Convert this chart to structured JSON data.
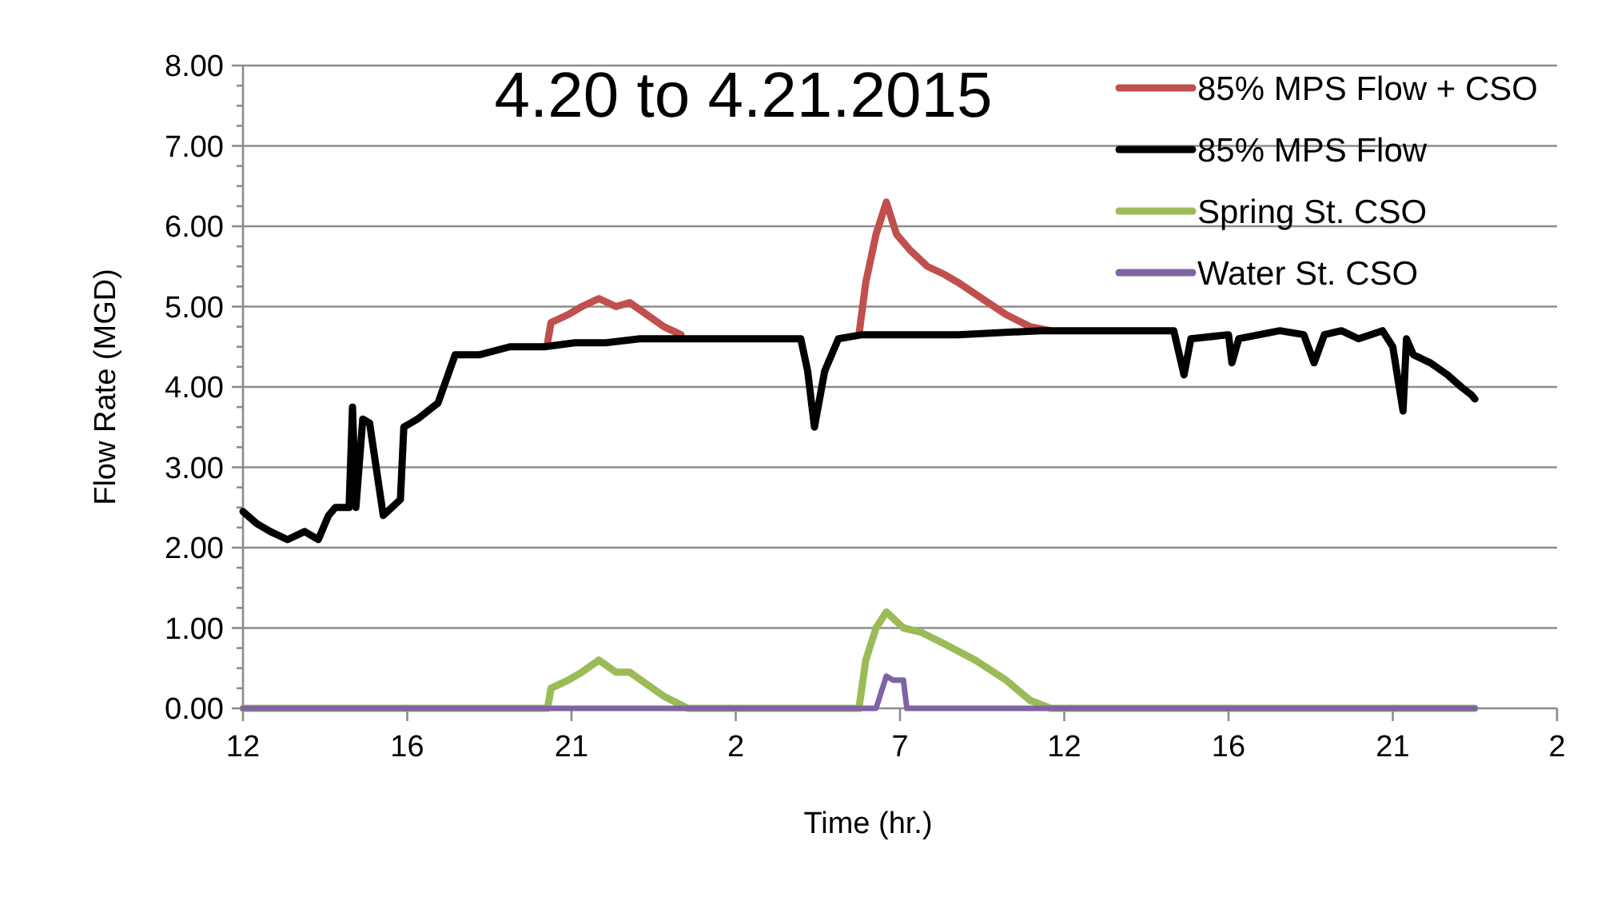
{
  "chart_data": {
    "type": "line",
    "title": "4.20 to 4.21.2015",
    "xlabel": "Time (hr.)",
    "ylabel": "Flow Rate (MGD)",
    "xlim": [
      "2015-04-20T12:00",
      "2015-04-22T02:24"
    ],
    "xticks": [
      {
        "value": "2015-04-20T12:00",
        "label": "12"
      },
      {
        "value": "2015-04-20T16:48",
        "label": "16"
      },
      {
        "value": "2015-04-20T21:36",
        "label": "21"
      },
      {
        "value": "2015-04-21T02:24",
        "label": "2"
      },
      {
        "value": "2015-04-21T07:12",
        "label": "7"
      },
      {
        "value": "2015-04-21T12:00",
        "label": "12"
      },
      {
        "value": "2015-04-21T16:48",
        "label": "16"
      },
      {
        "value": "2015-04-21T21:36",
        "label": "21"
      },
      {
        "value": "2015-04-22T02:24",
        "label": "2"
      }
    ],
    "ylim": [
      0,
      8
    ],
    "yticks": [
      {
        "value": 0,
        "label": "0.00"
      },
      {
        "value": 0.25,
        "label": null
      },
      {
        "value": 0.5,
        "label": null
      },
      {
        "value": 0.75,
        "label": null
      },
      {
        "value": 1,
        "label": "1.00"
      },
      {
        "value": 1.25,
        "label": null
      },
      {
        "value": 1.5,
        "label": null
      },
      {
        "value": 1.75,
        "label": null
      },
      {
        "value": 2,
        "label": "2.00"
      },
      {
        "value": 2.25,
        "label": null
      },
      {
        "value": 2.5,
        "label": null
      },
      {
        "value": 2.75,
        "label": null
      },
      {
        "value": 3,
        "label": "3.00"
      },
      {
        "value": 3.25,
        "label": null
      },
      {
        "value": 3.5,
        "label": null
      },
      {
        "value": 3.75,
        "label": null
      },
      {
        "value": 4,
        "label": "4.00"
      },
      {
        "value": 4.25,
        "label": null
      },
      {
        "value": 4.5,
        "label": null
      },
      {
        "value": 4.75,
        "label": null
      },
      {
        "value": 5,
        "label": "5.00"
      },
      {
        "value": 5.25,
        "label": null
      },
      {
        "value": 5.5,
        "label": null
      },
      {
        "value": 5.75,
        "label": null
      },
      {
        "value": 6,
        "label": "6.00"
      },
      {
        "value": 6.25,
        "label": null
      },
      {
        "value": 6.5,
        "label": null
      },
      {
        "value": 6.75,
        "label": null
      },
      {
        "value": 7,
        "label": "7.00"
      },
      {
        "value": 7.25,
        "label": null
      },
      {
        "value": 7.5,
        "label": null
      },
      {
        "value": 7.75,
        "label": null
      },
      {
        "value": 8,
        "label": "8.00"
      }
    ],
    "grid": "y",
    "legend": "top right",
    "marker": "none",
    "line_style": "solid",
    "series": [
      {
        "name": "85% MPS Flow + CSO",
        "color": "#c0504d",
        "x": [
          "2015-04-20T20:54",
          "2015-04-20T21:00",
          "2015-04-20T21:30",
          "2015-04-20T21:54",
          "2015-04-20T22:24",
          "2015-04-20T22:54",
          "2015-04-20T23:18",
          "2015-04-20T23:48",
          "2015-04-21T00:18",
          "2015-04-21T00:48",
          "2015-04-21T03:00",
          "2015-04-21T06:00",
          "2015-04-21T06:12",
          "2015-04-21T06:30",
          "2015-04-21T06:48",
          "2015-04-21T07:06",
          "2015-04-21T07:30",
          "2015-04-21T08:00",
          "2015-04-21T08:30",
          "2015-04-21T08:54",
          "2015-04-21T09:36",
          "2015-04-21T10:18",
          "2015-04-21T11:00",
          "2015-04-21T11:36"
        ],
        "values": [
          4.55,
          4.8,
          4.9,
          5.0,
          5.1,
          5.0,
          5.05,
          4.9,
          4.75,
          4.65,
          null,
          4.65,
          5.3,
          5.9,
          6.3,
          5.9,
          5.7,
          5.5,
          5.4,
          5.3,
          5.1,
          4.9,
          4.75,
          4.7
        ]
      },
      {
        "name": "85% MPS Flow",
        "color": "#000000",
        "x": [
          "2015-04-20T12:00",
          "2015-04-20T12:24",
          "2015-04-20T12:48",
          "2015-04-20T13:18",
          "2015-04-20T13:48",
          "2015-04-20T14:12",
          "2015-04-20T14:30",
          "2015-04-20T14:42",
          "2015-04-20T15:06",
          "2015-04-20T15:12",
          "2015-04-20T15:18",
          "2015-04-20T15:30",
          "2015-04-20T15:42",
          "2015-04-20T16:06",
          "2015-04-20T16:36",
          "2015-04-20T16:42",
          "2015-04-20T17:06",
          "2015-04-20T17:42",
          "2015-04-20T18:12",
          "2015-04-20T18:54",
          "2015-04-20T19:48",
          "2015-04-20T20:48",
          "2015-04-20T21:42",
          "2015-04-20T22:36",
          "2015-04-20T23:36",
          "2015-04-21T00:30",
          "2015-04-21T01:30",
          "2015-04-21T02:54",
          "2015-04-21T04:18",
          "2015-04-21T04:30",
          "2015-04-21T04:42",
          "2015-04-21T05:00",
          "2015-04-21T05:24",
          "2015-04-21T06:06",
          "2015-04-21T07:06",
          "2015-04-21T08:54",
          "2015-04-21T11:18",
          "2015-04-21T13:36",
          "2015-04-21T15:12",
          "2015-04-21T15:30",
          "2015-04-21T15:42",
          "2015-04-21T16:48",
          "2015-04-21T16:54",
          "2015-04-21T17:06",
          "2015-04-21T18:18",
          "2015-04-21T19:00",
          "2015-04-21T19:18",
          "2015-04-21T19:36",
          "2015-04-21T20:06",
          "2015-04-21T20:36",
          "2015-04-21T21:18",
          "2015-04-21T21:36",
          "2015-04-21T21:54",
          "2015-04-21T22:00",
          "2015-04-21T22:12",
          "2015-04-21T22:42",
          "2015-04-21T23:12",
          "2015-04-21T23:36",
          "2015-04-21T23:54",
          "2015-04-22T00:00"
        ],
        "values": [
          2.45,
          2.3,
          2.2,
          2.1,
          2.2,
          2.1,
          2.4,
          2.5,
          2.5,
          3.75,
          2.5,
          3.6,
          3.55,
          2.4,
          2.6,
          3.5,
          3.6,
          3.8,
          4.4,
          4.4,
          4.5,
          4.5,
          4.55,
          4.55,
          4.6,
          4.6,
          4.6,
          4.6,
          4.6,
          4.2,
          3.5,
          4.2,
          4.6,
          4.65,
          4.65,
          4.65,
          4.7,
          4.7,
          4.7,
          4.15,
          4.6,
          4.65,
          4.3,
          4.6,
          4.7,
          4.65,
          4.3,
          4.65,
          4.7,
          4.6,
          4.7,
          4.5,
          3.7,
          4.6,
          4.4,
          4.3,
          4.15,
          4.0,
          3.9,
          3.85
        ]
      },
      {
        "name": "Spring St. CSO",
        "color": "#9bbb59",
        "x": [
          "2015-04-20T12:00",
          "2015-04-20T20:54",
          "2015-04-20T21:00",
          "2015-04-20T21:30",
          "2015-04-20T21:54",
          "2015-04-20T22:24",
          "2015-04-20T22:54",
          "2015-04-20T23:18",
          "2015-04-20T23:48",
          "2015-04-21T00:18",
          "2015-04-21T01:00",
          "2015-04-21T06:00",
          "2015-04-21T06:12",
          "2015-04-21T06:30",
          "2015-04-21T06:48",
          "2015-04-21T07:18",
          "2015-04-21T07:48",
          "2015-04-21T08:30",
          "2015-04-21T09:24",
          "2015-04-21T10:18",
          "2015-04-21T11:00",
          "2015-04-21T11:36",
          "2015-04-22T00:00"
        ],
        "values": [
          0,
          0,
          0.25,
          0.35,
          0.45,
          0.6,
          0.45,
          0.45,
          0.3,
          0.15,
          0,
          0,
          0.6,
          1.0,
          1.2,
          1.0,
          0.95,
          0.8,
          0.6,
          0.35,
          0.1,
          0,
          0
        ]
      },
      {
        "name": "Water St. CSO",
        "color": "#8064a2",
        "x": [
          "2015-04-20T12:00",
          "2015-04-21T06:30",
          "2015-04-21T06:48",
          "2015-04-21T07:00",
          "2015-04-21T07:18",
          "2015-04-21T07:24",
          "2015-04-22T00:00"
        ],
        "values": [
          0,
          0,
          0.4,
          0.35,
          0.35,
          0,
          0
        ]
      }
    ]
  }
}
